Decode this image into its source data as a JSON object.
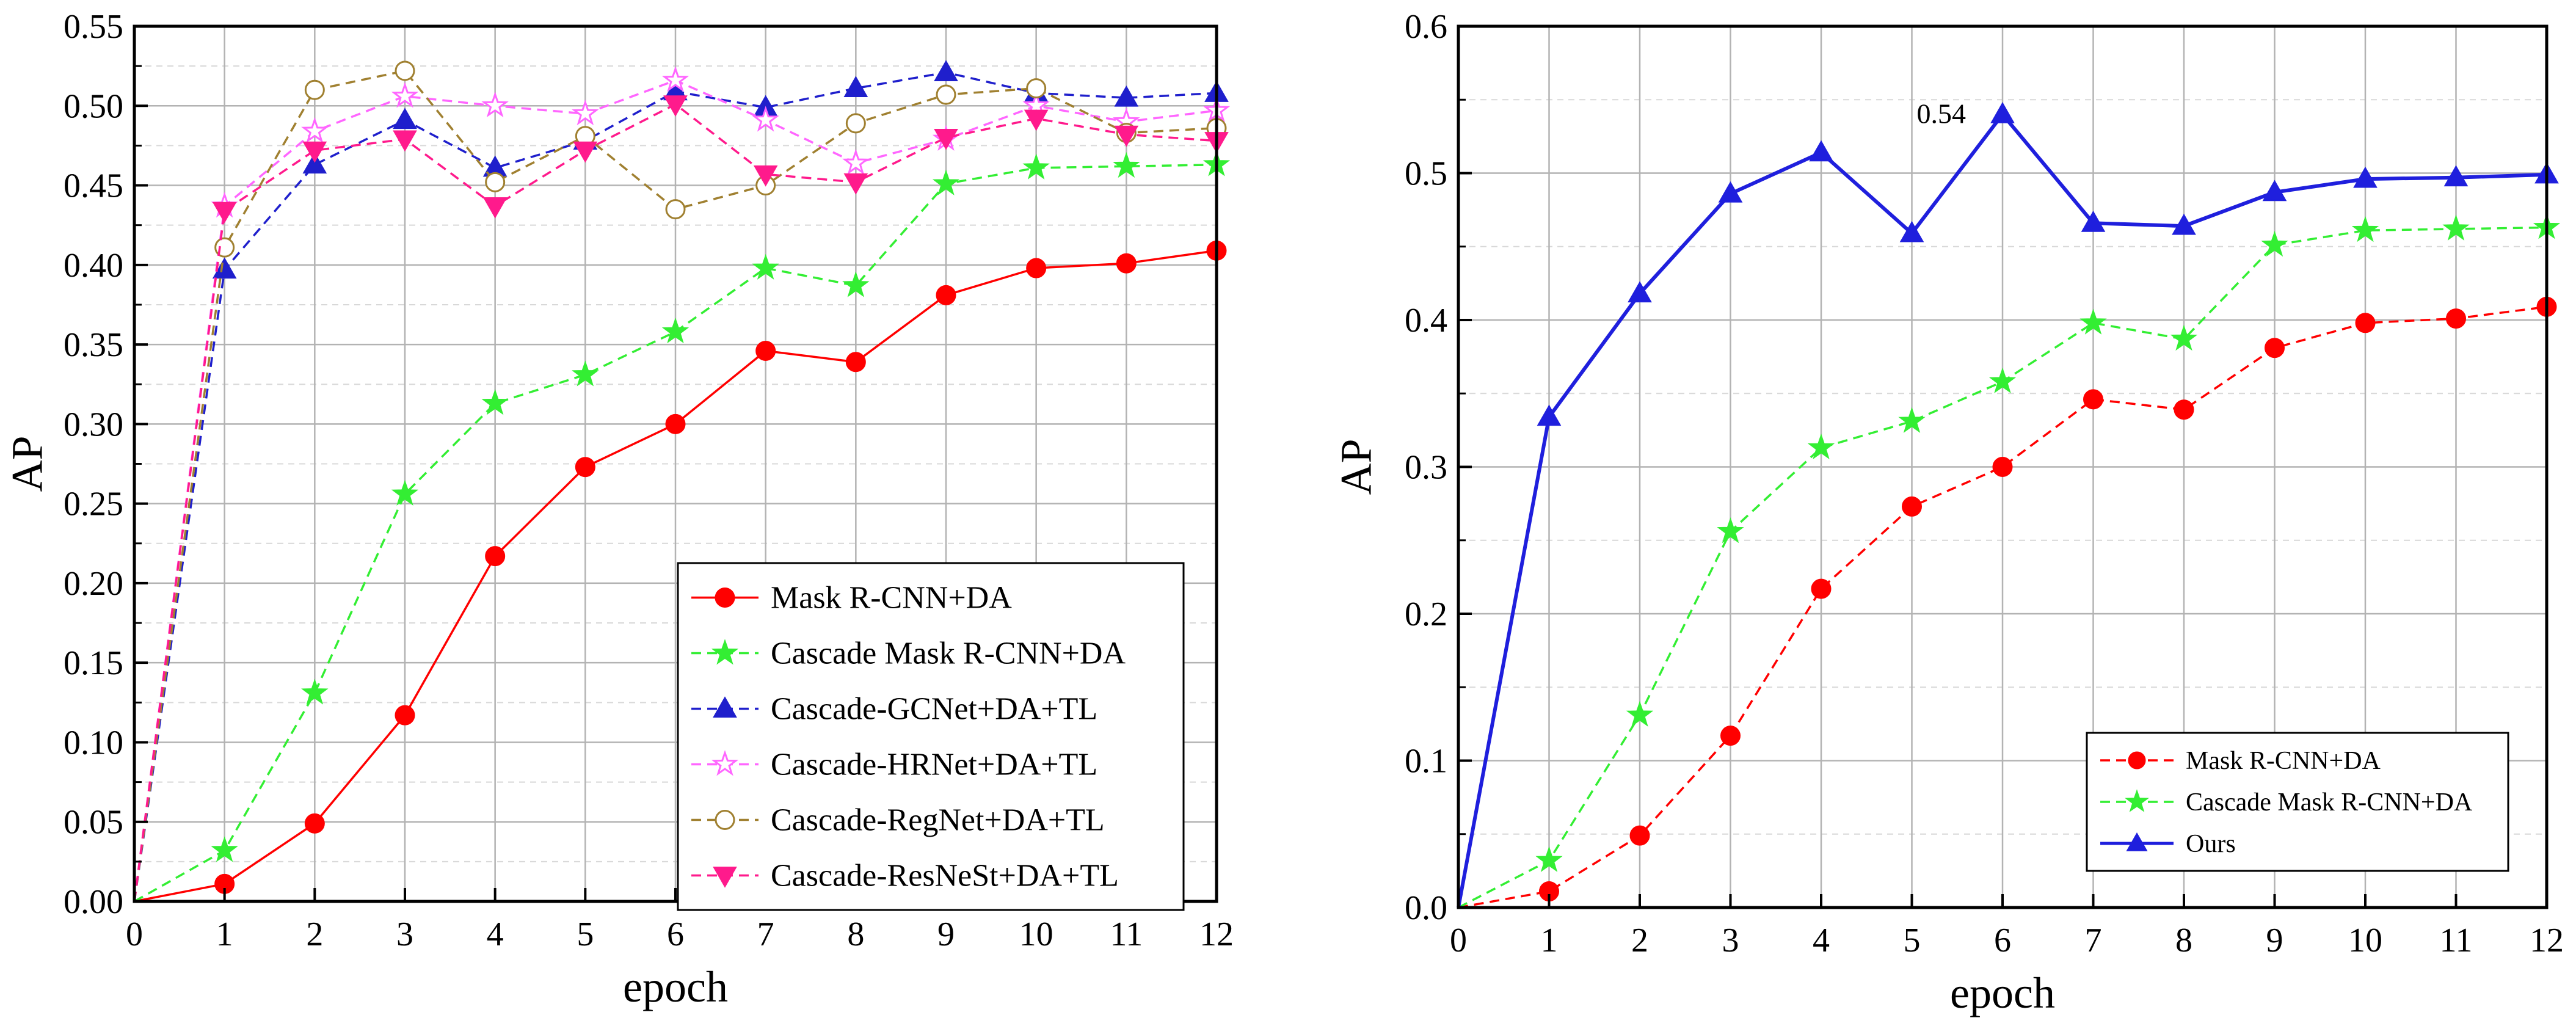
{
  "chart_data": [
    {
      "type": "line",
      "title": "",
      "xlabel": "epoch",
      "ylabel": "AP",
      "x": [
        0,
        1,
        2,
        3,
        4,
        5,
        6,
        7,
        8,
        9,
        10,
        11,
        12
      ],
      "xlim": [
        0,
        12
      ],
      "ylim": [
        0,
        0.55
      ],
      "xticks": [
        "0",
        "1",
        "2",
        "3",
        "4",
        "5",
        "6",
        "7",
        "8",
        "9",
        "10",
        "11",
        "12"
      ],
      "yticks": [
        "0.00",
        "0.05",
        "0.10",
        "0.15",
        "0.20",
        "0.25",
        "0.30",
        "0.35",
        "0.40",
        "0.45",
        "0.50",
        "0.55"
      ],
      "grid": true,
      "legend_position": "lower-right",
      "series": [
        {
          "name": "Mask R-CNN+DA",
          "color": "#ff0000",
          "dash": "solid",
          "marker": "circle",
          "filled": true,
          "values": [
            0,
            0.011,
            0.049,
            0.117,
            0.217,
            0.273,
            0.3,
            0.346,
            0.339,
            0.381,
            0.398,
            0.401,
            0.409
          ]
        },
        {
          "name": "Cascade Mask R-CNN+DA",
          "color": "#33ee33",
          "dash": "dashed",
          "marker": "star",
          "filled": true,
          "values": [
            0,
            0.032,
            0.131,
            0.256,
            0.313,
            0.331,
            0.358,
            0.398,
            0.387,
            0.451,
            0.461,
            0.462,
            0.463
          ]
        },
        {
          "name": "Cascade-GCNet+DA+TL",
          "color": "#1f1fcc",
          "dash": "dashed",
          "marker": "triangle-up",
          "filled": true,
          "values": [
            0,
            0.397,
            0.463,
            0.491,
            0.461,
            0.478,
            0.509,
            0.499,
            0.511,
            0.521,
            0.508,
            0.505,
            0.508
          ]
        },
        {
          "name": "Cascade-HRNet+DA+TL",
          "color": "#ff66ff",
          "dash": "dashed",
          "marker": "star",
          "filled": false,
          "values": [
            0,
            0.437,
            0.484,
            0.506,
            0.5,
            0.495,
            0.516,
            0.491,
            0.464,
            0.479,
            0.5,
            0.49,
            0.497
          ]
        },
        {
          "name": "Cascade-RegNet+DA+TL",
          "color": "#a08030",
          "dash": "dashed",
          "marker": "circle",
          "filled": false,
          "values": [
            0,
            0.411,
            0.51,
            0.522,
            0.452,
            0.481,
            0.435,
            0.45,
            0.489,
            0.507,
            0.511,
            0.483,
            0.486
          ]
        },
        {
          "name": "Cascade-ResNeSt+DA+TL",
          "color": "#ff1a8c",
          "dash": "dashed",
          "marker": "triangle-down",
          "filled": true,
          "values": [
            0,
            0.434,
            0.472,
            0.479,
            0.437,
            0.472,
            0.501,
            0.457,
            0.452,
            0.48,
            0.492,
            0.482,
            0.478
          ]
        }
      ]
    },
    {
      "type": "line",
      "title": "",
      "xlabel": "epoch",
      "ylabel": "AP",
      "x": [
        0,
        1,
        2,
        3,
        4,
        5,
        6,
        7,
        8,
        9,
        10,
        11,
        12
      ],
      "xlim": [
        0,
        12
      ],
      "ylim": [
        0,
        0.6
      ],
      "xticks": [
        "0",
        "1",
        "2",
        "3",
        "4",
        "5",
        "6",
        "7",
        "8",
        "9",
        "10",
        "11",
        "12"
      ],
      "yticks": [
        "0.0",
        "0.1",
        "0.2",
        "0.3",
        "0.4",
        "0.5",
        "0.6"
      ],
      "grid": true,
      "legend_position": "lower-right",
      "annotations": [
        {
          "text": "0.54",
          "x": 6,
          "y": 0.54
        }
      ],
      "series": [
        {
          "name": "Mask R-CNN+DA",
          "color": "#ff0000",
          "dash": "dashed",
          "marker": "circle",
          "filled": true,
          "values": [
            0,
            0.011,
            0.049,
            0.117,
            0.217,
            0.273,
            0.3,
            0.346,
            0.339,
            0.381,
            0.398,
            0.401,
            0.409
          ]
        },
        {
          "name": "Cascade Mask R-CNN+DA",
          "color": "#33ee33",
          "dash": "dashed",
          "marker": "star",
          "filled": true,
          "values": [
            0,
            0.032,
            0.131,
            0.256,
            0.313,
            0.331,
            0.358,
            0.398,
            0.387,
            0.451,
            0.461,
            0.462,
            0.463
          ]
        },
        {
          "name": "Ours",
          "color": "#1f1fdd",
          "dash": "solid",
          "marker": "triangle-up",
          "filled": true,
          "values": [
            0,
            0.334,
            0.418,
            0.486,
            0.514,
            0.459,
            0.54,
            0.466,
            0.464,
            0.487,
            0.496,
            0.497,
            0.499
          ]
        }
      ]
    }
  ]
}
